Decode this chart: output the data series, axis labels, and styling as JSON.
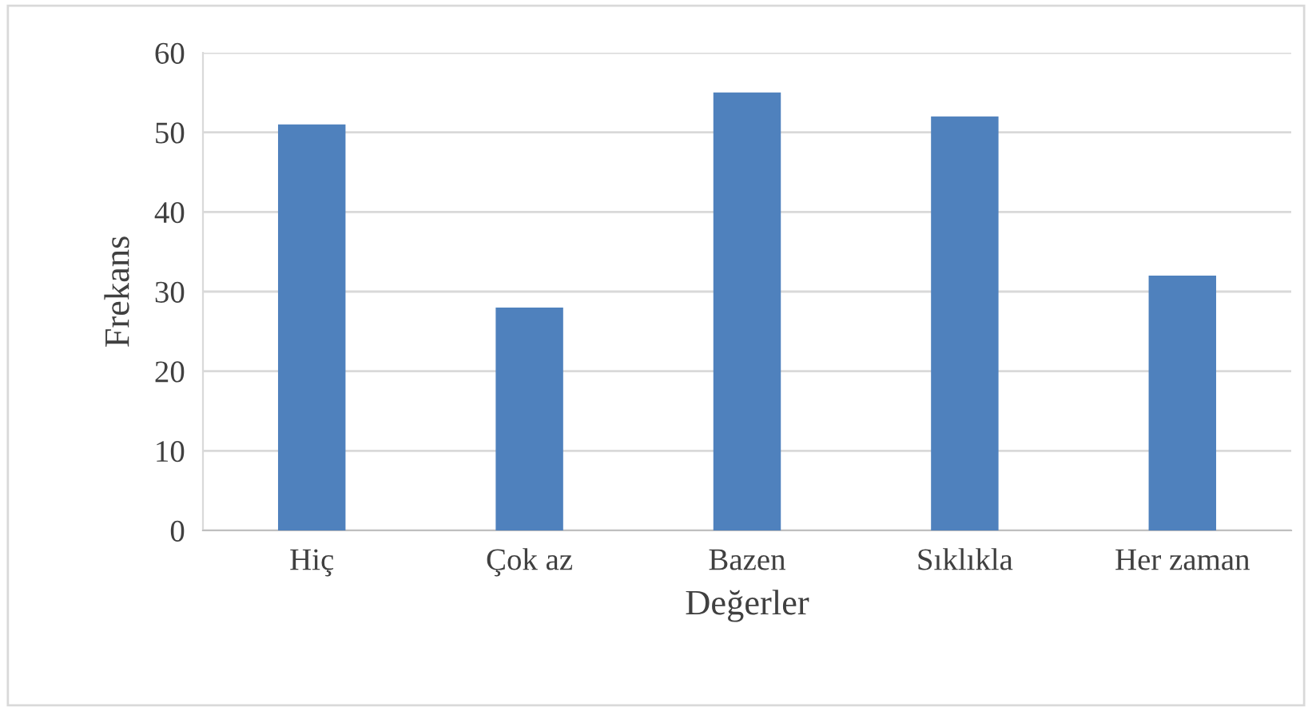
{
  "chart_data": {
    "type": "bar",
    "xlabel": "Değerler",
    "ylabel": "Frekans",
    "categories": [
      "Hiç",
      "Çok az",
      "Bazen",
      "Sıklıkla",
      "Her zaman"
    ],
    "values": [
      51,
      28,
      55,
      52,
      32
    ],
    "color": "#4f81bd",
    "ylim": [
      0,
      60
    ],
    "yticks": [
      0,
      10,
      20,
      30,
      40,
      50,
      60
    ],
    "grid": "y",
    "legend": false
  }
}
